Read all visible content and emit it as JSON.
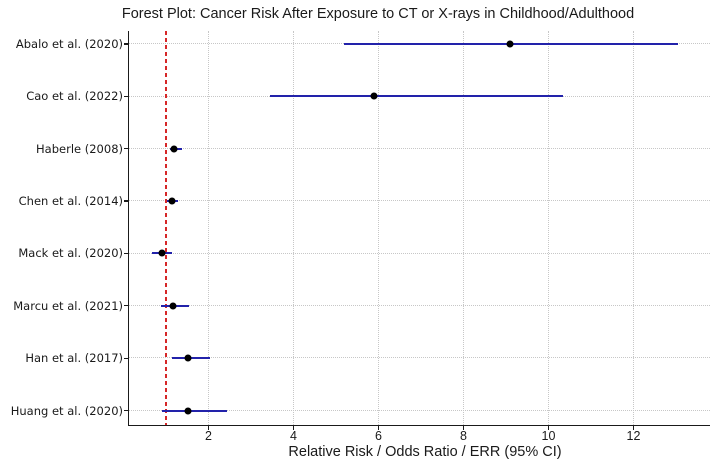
{
  "title": "Forest Plot: Cancer Risk After Exposure to CT or X-rays in Childhood/Adulthood",
  "chart_data": {
    "type": "scatter",
    "variant": "forest-plot",
    "title": "Forest Plot: Cancer Risk After Exposure to CT or X-rays in Childhood/Adulthood",
    "xlabel": "Relative Risk / Odds Ratio / ERR (95% CI)",
    "x_ticks": [
      2,
      4,
      6,
      8,
      10,
      12
    ],
    "xlim": [
      0.106,
      13.8
    ],
    "grid": true,
    "legend": false,
    "reference_line": {
      "x": 1.0,
      "style": "dashed"
    },
    "studies": [
      {
        "label": "Abalo et al. (2020)",
        "estimate": 9.1,
        "ci_low": 5.2,
        "ci_high": 13.05
      },
      {
        "label": "Cao et al. (2022)",
        "estimate": 5.9,
        "ci_low": 3.45,
        "ci_high": 10.35
      },
      {
        "label": "Haberle (2008)",
        "estimate": 1.2,
        "ci_low": 1.09,
        "ci_high": 1.37
      },
      {
        "label": "Chen et al. (2014)",
        "estimate": 1.15,
        "ci_low": 1.02,
        "ci_high": 1.28
      },
      {
        "label": "Mack et al. (2020)",
        "estimate": 0.9,
        "ci_low": 0.66,
        "ci_high": 1.13
      },
      {
        "label": "Marcu et al. (2021)",
        "estimate": 1.17,
        "ci_low": 0.88,
        "ci_high": 1.55
      },
      {
        "label": "Han et al. (2017)",
        "estimate": 1.52,
        "ci_low": 1.13,
        "ci_high": 2.04
      },
      {
        "label": "Huang et al. (2020)",
        "estimate": 1.52,
        "ci_low": 0.9,
        "ci_high": 2.43
      }
    ],
    "colors": {
      "ci_line": "#2222aa",
      "marker": "#000000",
      "reference": "#d62728",
      "grid": "#c7c7c7",
      "axis": "#1a1a1a",
      "text": "#1a1a1a",
      "background": "#ffffff"
    }
  }
}
